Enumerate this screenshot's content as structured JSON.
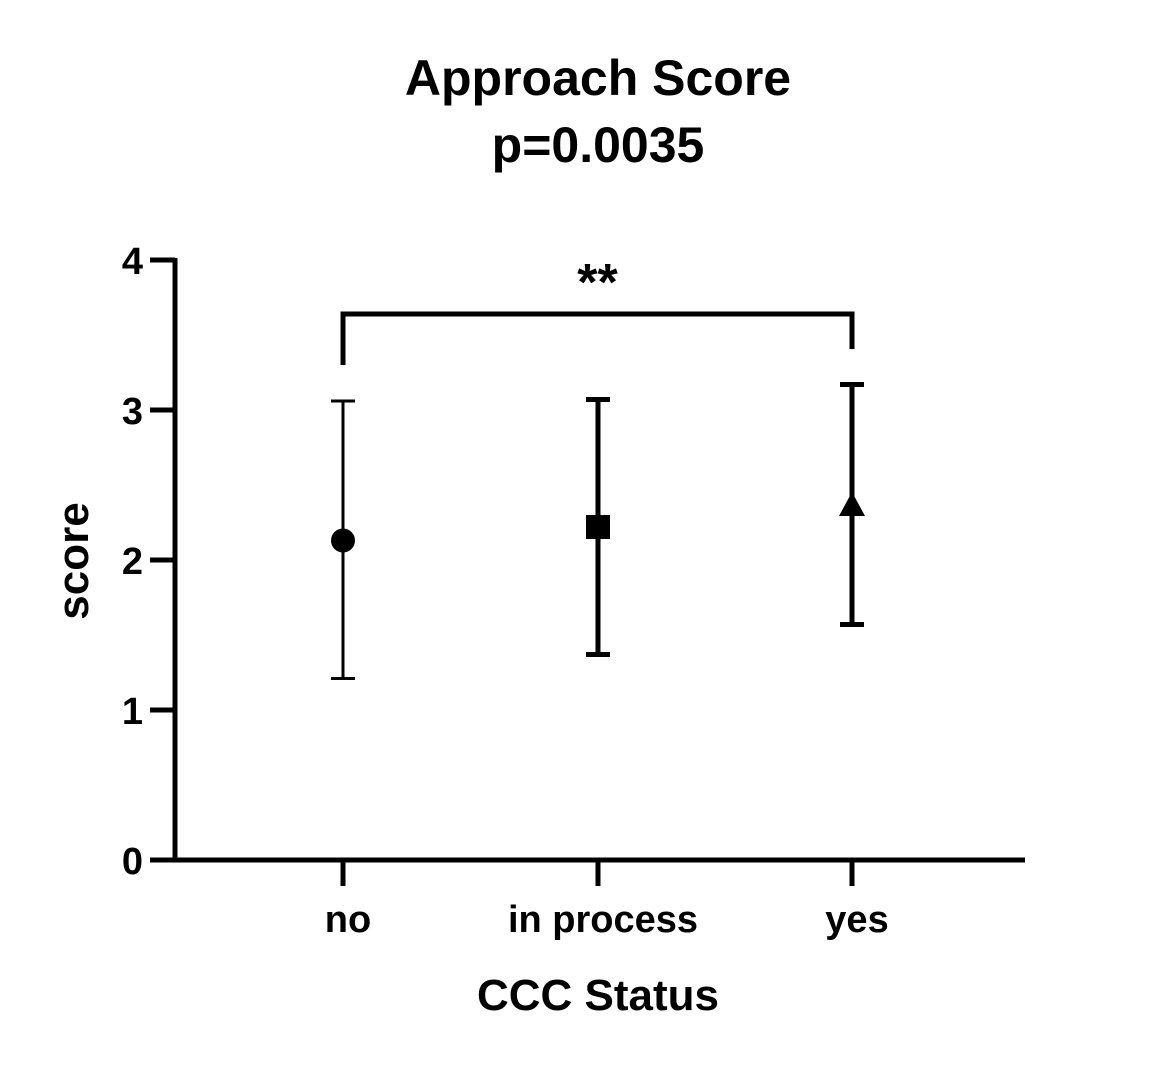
{
  "chart_data": {
    "type": "scatter",
    "subtype": "mean-with-error-bars",
    "title": "Approach Score",
    "subtitle": "p=0.0035",
    "xlabel": "CCC Status",
    "ylabel": "score",
    "categories": [
      "no",
      "in process",
      "yes"
    ],
    "ylim": [
      0,
      4
    ],
    "yticks": [
      0,
      1,
      2,
      3,
      4
    ],
    "ytick_labels": [
      "0",
      "1",
      "2",
      "3",
      "4"
    ],
    "grid": false,
    "legend": null,
    "series": [
      {
        "name": "no",
        "marker": "circle",
        "mean": 2.13,
        "lower": 1.21,
        "upper": 3.06
      },
      {
        "name": "in process",
        "marker": "square",
        "mean": 2.22,
        "lower": 1.37,
        "upper": 3.07
      },
      {
        "name": "yes",
        "marker": "triangle",
        "mean": 2.36,
        "lower": 1.57,
        "upper": 3.17
      }
    ],
    "annotations": [
      {
        "type": "significance-bracket",
        "from": "no",
        "to": "yes",
        "label": "**"
      }
    ],
    "colors": {
      "marker": "#000000",
      "axis": "#000000",
      "background": "#ffffff"
    }
  }
}
